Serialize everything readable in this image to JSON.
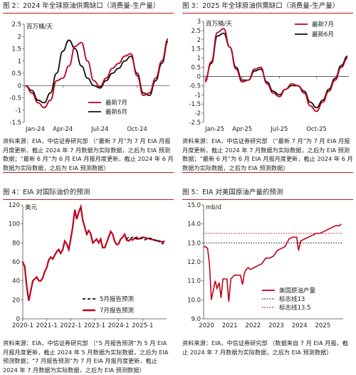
{
  "colors": {
    "red": "#c0001a",
    "black": "#111111",
    "grid": "#d9d9d9",
    "rule": "#b22222"
  },
  "panels": [
    {
      "title": "图 2：2024 年全球原油供需缺口（消费量-生产量）",
      "source": "资料来源：EIA，中信证券研究部 （“最新 7 月”为 7 月 EIA 月报月度更新，截止 2024 年 7 月数据为实际数据，之后为 EIA 预测数据；“最新 6 月”为 6 月 EIA 月报月度更新，截止 2024 年 6 月数据为实际数据，之后为 EIA 预测数据）"
    },
    {
      "title": "图 3：2025 年全球原油供需缺口（消费量-生产量）",
      "source": "资料来源：EIA，中信证券研究部 （“最新 7 月”为 7 月 EIA 月报月度更新，截止 2024 年 7 月数据为实际数据，之后为 EIA 预测数据；“最新 6 月”为 6 月 EIA 月报月度更新，截止 2024 年 6 月数据为实际数据，之后为 EIA 预测数据）"
    },
    {
      "title": "图 4：EIA 对国际油价的预测",
      "source": "资料来源：EIA，中信证券研究部 （“5 月报告预测”为 5 月 EIA 月报月度更新，截止 2024 年 5 月数据为实际数据，之后为 EIA 预测数据；“7 月报告预测”为 7 月 EIA 月报月度更新，截止 2024 年 7 月数据为实际数据，之后为 EIA 预测数据）"
    },
    {
      "title": "图 5：EIA 对美国原油产量的预测",
      "source": "资料来源：EIA，中信证券研究部 （数据来自 7 月 EIA 月报，截止 2024 年 7 月数据为实际数据，之后为 EIA 预测数据）"
    }
  ],
  "chart_data": [
    {
      "type": "line",
      "unit": "百万桶/天",
      "ylim": [
        -1.5,
        2.5
      ],
      "yticks": [
        "2.5",
        "2",
        "1.5",
        "1",
        "0.5",
        "0",
        "-0.5",
        "-1",
        "-1.5"
      ],
      "xticks": [
        "Jan-24",
        "Apr-24",
        "Jul-24",
        "Oct-24"
      ],
      "x": [
        "2024-01",
        "2024-01",
        "2024-02",
        "2024-02",
        "2024-03",
        "2024-03",
        "2024-04",
        "2024-04",
        "2024-05",
        "2024-05",
        "2024-06",
        "2024-06",
        "2024-07",
        "2024-07",
        "2024-08",
        "2024-08",
        "2024-09",
        "2024-09",
        "2024-10",
        "2024-10",
        "2024-11",
        "2024-11",
        "2024-12",
        "2024-12"
      ],
      "series": [
        {
          "name": "最新7月",
          "color": "#c0001a",
          "values": [
            0,
            -0.3,
            -0.7,
            -0.9,
            -0.6,
            0.2,
            0.3,
            0.8,
            1.6,
            1.75,
            1.0,
            0.2,
            -0.05,
            0.3,
            0.7,
            0.9,
            1.2,
            1.3,
            0.4,
            -0.4,
            -0.3,
            0.3,
            1.0,
            1.9
          ]
        },
        {
          "name": "最新6月",
          "color": "#111111",
          "values": [
            0,
            -0.2,
            -0.6,
            -0.7,
            -0.3,
            0.5,
            1.4,
            1.85,
            1.5,
            0.8,
            0.3,
            0.0,
            -0.1,
            0.2,
            0.5,
            0.7,
            1.0,
            1.2,
            0.5,
            -0.3,
            -0.4,
            0.2,
            0.9,
            1.8
          ]
        }
      ],
      "legend": "bottom-right",
      "legend_labels": [
        "最新7月",
        "最新6月"
      ]
    },
    {
      "type": "line",
      "unit": "百万桶/天",
      "ylim": [
        -2.5,
        3
      ],
      "yticks": [
        "3",
        "2.5",
        "2",
        "1.5",
        "1",
        "0.5",
        "0",
        "-0.5",
        "-1",
        "-1.5",
        "-2",
        "-2.5"
      ],
      "xticks": [
        "Jan-25",
        "Apr-25",
        "Jul-25",
        "Oct-25"
      ],
      "x": [
        "2025-01",
        "2025-01",
        "2025-02",
        "2025-02",
        "2025-03",
        "2025-03",
        "2025-04",
        "2025-04",
        "2025-05",
        "2025-05",
        "2025-06",
        "2025-06",
        "2025-07",
        "2025-07",
        "2025-08",
        "2025-08",
        "2025-09",
        "2025-09",
        "2025-10",
        "2025-10",
        "2025-11",
        "2025-11",
        "2025-12",
        "2025-12"
      ],
      "series": [
        {
          "name": "最新7月",
          "color": "#c0001a",
          "values": [
            -0.3,
            0.8,
            2.4,
            2.6,
            1.6,
            0.4,
            -0.3,
            -0.2,
            0.4,
            0.5,
            -0.4,
            -0.9,
            -1.1,
            -0.7,
            -0.4,
            -0.5,
            -0.9,
            -1.6,
            -1.9,
            -1.4,
            -0.8,
            -0.2,
            0.5,
            1.0
          ]
        },
        {
          "name": "最新6月",
          "color": "#111111",
          "values": [
            -0.2,
            0.7,
            2.2,
            2.35,
            1.6,
            0.5,
            -0.2,
            -0.2,
            0.3,
            0.4,
            -0.3,
            -0.8,
            -1.0,
            -0.7,
            -0.5,
            -0.5,
            -0.8,
            -1.4,
            -1.7,
            -1.3,
            -0.7,
            -0.1,
            0.6,
            1.1
          ]
        }
      ],
      "legend": "top-right",
      "legend_labels": [
        "最新7月",
        "最新6月"
      ]
    },
    {
      "type": "line",
      "unit": "美元",
      "ylim": [
        0,
        120
      ],
      "yticks": [
        "120",
        "100",
        "80",
        "60",
        "40",
        "20",
        "0"
      ],
      "xticks": [
        "2020-1",
        "2021-1",
        "2022-1",
        "2023-1",
        "2024-1",
        "2025-1"
      ],
      "xrange": [
        2020.0,
        2026.0
      ],
      "series": [
        {
          "name": "5月报告预测",
          "color": "#111111",
          "dash": true,
          "x": [
            2024.33,
            2024.42,
            2024.5,
            2024.58,
            2024.67,
            2024.75,
            2024.83,
            2024.92,
            2025.0,
            2025.08,
            2025.17,
            2025.25,
            2025.33,
            2025.42,
            2025.5,
            2025.58,
            2025.67,
            2025.75,
            2025.83,
            2025.92
          ],
          "values": [
            84,
            86,
            85,
            86,
            85,
            84,
            85,
            85,
            84,
            83,
            84,
            85,
            85,
            84,
            83,
            81,
            82,
            80,
            79,
            81
          ]
        },
        {
          "name": "7月报告预测",
          "color": "#c0001a",
          "dash": false,
          "x": [
            2020.0,
            2020.08,
            2020.17,
            2020.25,
            2020.33,
            2020.42,
            2020.5,
            2020.58,
            2020.67,
            2020.75,
            2020.83,
            2020.92,
            2021.0,
            2021.08,
            2021.17,
            2021.25,
            2021.33,
            2021.42,
            2021.5,
            2021.58,
            2021.67,
            2021.75,
            2021.83,
            2021.92,
            2022.0,
            2022.08,
            2022.17,
            2022.25,
            2022.33,
            2022.42,
            2022.5,
            2022.58,
            2022.67,
            2022.75,
            2022.83,
            2022.92,
            2023.0,
            2023.08,
            2023.17,
            2023.25,
            2023.33,
            2023.42,
            2023.5,
            2023.58,
            2023.67,
            2023.75,
            2023.83,
            2023.92,
            2024.0,
            2024.08,
            2024.17,
            2024.25,
            2024.33,
            2024.42,
            2024.5,
            2024.58,
            2024.67,
            2024.75,
            2024.83,
            2024.92,
            2025.0,
            2025.17,
            2025.33,
            2025.5,
            2025.67,
            2025.83,
            2025.92
          ],
          "values": [
            60,
            55,
            33,
            19,
            29,
            40,
            42,
            44,
            40,
            40,
            43,
            50,
            54,
            62,
            65,
            63,
            67,
            71,
            73,
            69,
            73,
            82,
            79,
            73,
            84,
            96,
            115,
            105,
            112,
            118,
            104,
            97,
            89,
            93,
            90,
            80,
            82,
            84,
            80,
            84,
            75,
            75,
            80,
            86,
            92,
            89,
            82,
            78,
            79,
            84,
            86,
            89,
            83,
            82,
            84,
            83,
            85,
            86,
            84,
            85,
            86,
            85,
            84,
            83,
            82,
            81,
            82
          ]
        }
      ],
      "legend": "bottom-right",
      "legend_labels": [
        "5月报告预测",
        "7月报告预测"
      ]
    },
    {
      "type": "line",
      "unit": "mb/d",
      "ylim": [
        9.0,
        15.0
      ],
      "yticks": [
        "15.0",
        "14.0",
        "13.0",
        "12.0",
        "11.0",
        "10.0",
        "9.0"
      ],
      "xticks": [
        "2020",
        "2021",
        "2022",
        "2023",
        "2024",
        "2025"
      ],
      "xrange": [
        2020.0,
        2026.0
      ],
      "reference_lines": [
        {
          "name": "标志线13",
          "value": 13.0,
          "color": "#111111"
        },
        {
          "name": "标志线13.5",
          "value": 13.5,
          "color": "#c0001a"
        }
      ],
      "series": [
        {
          "name": "美国原油产量",
          "color": "#c0001a",
          "x": [
            2020.0,
            2020.08,
            2020.17,
            2020.25,
            2020.33,
            2020.42,
            2020.5,
            2020.58,
            2020.67,
            2020.75,
            2020.83,
            2020.92,
            2021.0,
            2021.08,
            2021.17,
            2021.25,
            2021.33,
            2021.42,
            2021.5,
            2021.58,
            2021.67,
            2021.75,
            2021.83,
            2021.92,
            2022.0,
            2022.17,
            2022.33,
            2022.5,
            2022.67,
            2022.83,
            2023.0,
            2023.17,
            2023.33,
            2023.5,
            2023.67,
            2023.83,
            2024.0,
            2024.08,
            2024.17,
            2024.33,
            2024.5,
            2024.67,
            2024.83,
            2025.0,
            2025.17,
            2025.33,
            2025.5,
            2025.67,
            2025.83,
            2025.92
          ],
          "values": [
            12.8,
            12.8,
            12.7,
            11.9,
            10.0,
            10.5,
            11.0,
            10.6,
            10.9,
            10.1,
            11.1,
            11.1,
            11.1,
            9.9,
            11.1,
            11.2,
            11.3,
            11.3,
            11.3,
            11.3,
            10.8,
            11.4,
            11.6,
            11.7,
            11.6,
            11.7,
            11.8,
            11.9,
            12.2,
            12.2,
            12.3,
            12.6,
            12.7,
            12.8,
            13.2,
            13.3,
            13.3,
            12.6,
            13.1,
            13.2,
            13.3,
            13.4,
            13.5,
            13.5,
            13.6,
            13.7,
            13.8,
            13.9,
            13.9,
            14.0
          ]
        }
      ],
      "legend": "bottom-right",
      "legend_labels": [
        "美国原油产量",
        "标志线13",
        "标志线13.5"
      ]
    }
  ]
}
